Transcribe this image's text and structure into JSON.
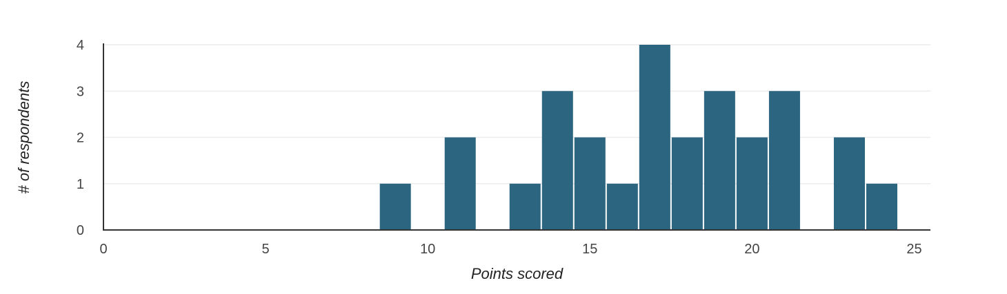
{
  "chart_data": {
    "type": "bar",
    "xlabel": "Points scored",
    "ylabel": "# of respondents",
    "xlim": [
      0,
      25.5
    ],
    "ylim": [
      0,
      4
    ],
    "x_ticks": [
      0,
      5,
      10,
      15,
      20,
      25
    ],
    "y_ticks": [
      0,
      1,
      2,
      3,
      4
    ],
    "grid": true,
    "bar_color": "#2b6580",
    "bins": [
      {
        "x": 9,
        "value": 1
      },
      {
        "x": 11,
        "value": 2
      },
      {
        "x": 13,
        "value": 1
      },
      {
        "x": 14,
        "value": 3
      },
      {
        "x": 15,
        "value": 2
      },
      {
        "x": 16,
        "value": 1
      },
      {
        "x": 17,
        "value": 4
      },
      {
        "x": 18,
        "value": 2
      },
      {
        "x": 19,
        "value": 3
      },
      {
        "x": 20,
        "value": 2
      },
      {
        "x": 21,
        "value": 3
      },
      {
        "x": 23,
        "value": 2
      },
      {
        "x": 24,
        "value": 1
      }
    ]
  }
}
